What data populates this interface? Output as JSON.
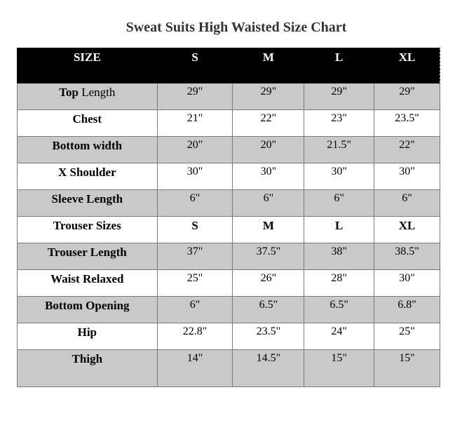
{
  "title": "Sweat Suits High Waisted Size Chart",
  "header": [
    "SIZE",
    "S",
    "M",
    "L",
    "XL"
  ],
  "rows": [
    {
      "label_bold": "Top",
      "label_rest": " Length",
      "values": [
        "29\"",
        "29\"",
        "29\"",
        "29\""
      ]
    },
    {
      "label_bold": "Chest",
      "label_rest": "",
      "values": [
        "21\"",
        "22\"",
        "23\"",
        "23.5\""
      ]
    },
    {
      "label_bold": "Bottom width",
      "label_rest": "",
      "values": [
        "20\"",
        "20\"",
        "21.5\"",
        "22\""
      ]
    },
    {
      "label_bold": "X Shoulder",
      "label_rest": "",
      "values": [
        "30\"",
        "30\"",
        "30\"",
        "30\""
      ]
    },
    {
      "label_bold": "Sleeve Length",
      "label_rest": "",
      "values": [
        "6\"",
        "6\"",
        "6\"",
        "6\""
      ]
    },
    {
      "label_bold": "Trouser Sizes",
      "label_rest": "",
      "values": [
        "S",
        "M",
        "L",
        "XL"
      ]
    },
    {
      "label_bold": "Trouser Length",
      "label_rest": "",
      "values": [
        "37\"",
        "37.5\"",
        "38\"",
        "38.5\""
      ]
    },
    {
      "label_bold": "Waist Relaxed",
      "label_rest": "",
      "values": [
        "25\"",
        "26\"",
        "28\"",
        "30\""
      ]
    },
    {
      "label_bold": "Bottom Opening",
      "label_rest": "",
      "values": [
        "6\"",
        "6.5\"",
        "6.5\"",
        "6.8\""
      ]
    },
    {
      "label_bold": "Hip",
      "label_rest": "",
      "values": [
        "22.8\"",
        "23.5\"",
        "24\"",
        "25\""
      ]
    },
    {
      "label_bold": "Thigh",
      "label_rest": "",
      "values": [
        "14\"",
        "14.5\"",
        "15\"",
        "15\""
      ]
    }
  ]
}
